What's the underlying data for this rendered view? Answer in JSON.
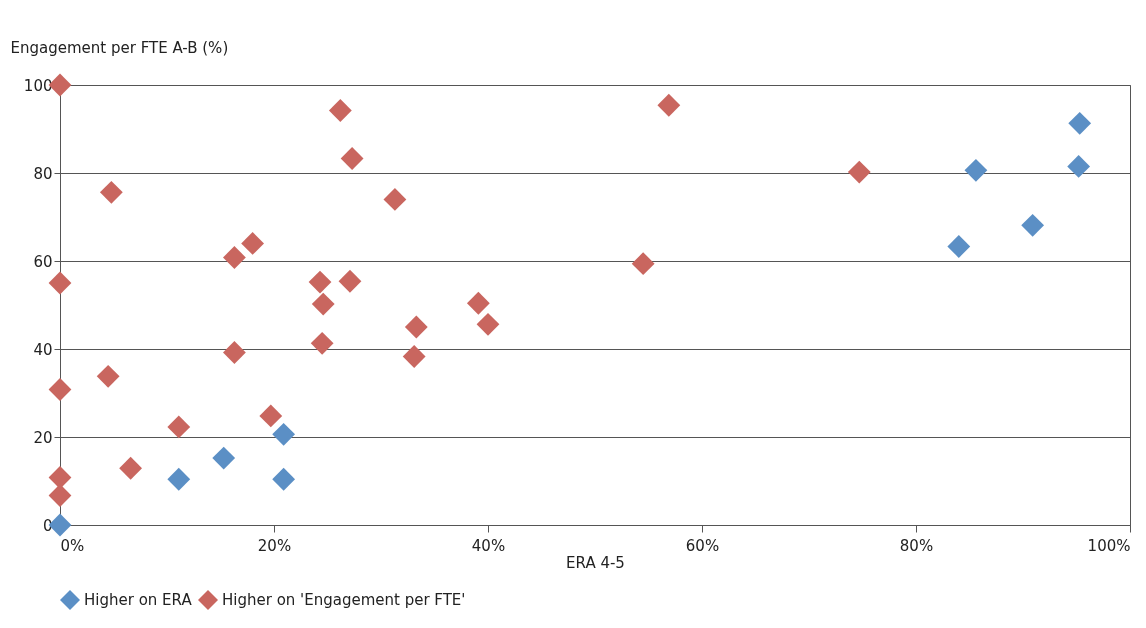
{
  "chart_data": {
    "type": "scatter",
    "xlabel": "ERA 4-5",
    "ylabel": "Engagement per FTE  A-B (%)",
    "xlim": [
      0,
      100
    ],
    "xticks": [
      {
        "value": 0,
        "label": "0%"
      },
      {
        "value": 20,
        "label": "20%"
      },
      {
        "value": 40,
        "label": "40%"
      },
      {
        "value": 60,
        "label": "60%"
      },
      {
        "value": 80,
        "label": "80%"
      },
      {
        "value": 100,
        "label": "100%"
      }
    ],
    "ylim": [
      0,
      100
    ],
    "yticks": [
      0,
      20,
      40,
      60,
      80,
      100
    ],
    "grid": "y",
    "legend": "bottom left",
    "marker": "diamond",
    "series": [
      {
        "name": "Higher on ERA",
        "color": "#5b8fc5",
        "x": [
          0,
          11.1,
          15.3,
          20.9,
          20.9,
          84.0,
          85.6,
          90.9,
          95.2,
          95.3
        ],
        "values": [
          0,
          10.4,
          15.2,
          20.6,
          10.4,
          63.3,
          80.6,
          68.1,
          81.5,
          91.3
        ]
      },
      {
        "name": "Higher on 'Engagement per FTE'",
        "color": "#c9665f",
        "x": [
          0,
          0,
          0,
          0,
          0,
          4.8,
          4.5,
          6.6,
          11.1,
          16.3,
          18.0,
          16.3,
          19.7,
          26.2,
          27.3,
          24.3,
          24.6,
          24.5,
          27.1,
          31.3,
          33.3,
          33.1,
          39.1,
          40.0,
          54.5,
          56.9,
          74.7
        ],
        "values": [
          100,
          55,
          30.8,
          10.8,
          6.7,
          75.6,
          33.8,
          12.9,
          22.3,
          60.8,
          64,
          39.2,
          24.8,
          94.2,
          83.3,
          55.2,
          50.2,
          41.3,
          55.4,
          74,
          45,
          38.3,
          50.4,
          45.6,
          59.4,
          95.4,
          80.2
        ]
      }
    ]
  }
}
